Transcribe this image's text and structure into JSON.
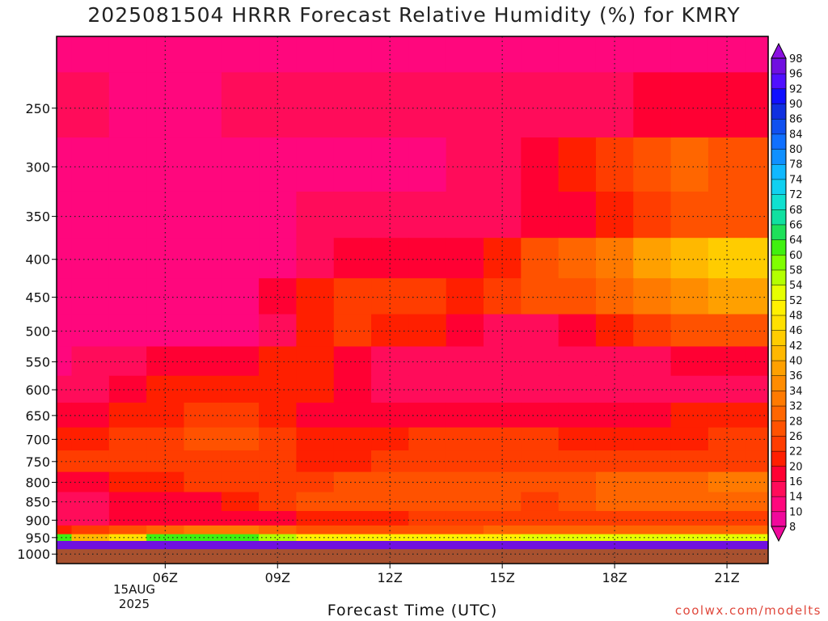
{
  "page": {
    "title": "2025081504 HRRR Forecast Relative Humidity (%) for KMRY",
    "credit": "coolwx.com/modelts"
  },
  "chart_data": {
    "type": "heatmap",
    "title": "2025081504 HRRR Forecast Relative Humidity (%) for KMRY",
    "xlabel": "Forecast Time (UTC)",
    "ylabel": "",
    "x_ticks": [
      "06Z",
      "09Z",
      "12Z",
      "15Z",
      "18Z",
      "21Z"
    ],
    "x_date_labels": [
      "15AUG",
      "2025"
    ],
    "y_ticks": [
      250,
      300,
      350,
      400,
      450,
      500,
      550,
      600,
      650,
      700,
      750,
      800,
      850,
      900,
      950,
      1000
    ],
    "y_scale": "log",
    "y_reversed": true,
    "grid": true,
    "colorbar": {
      "levels": [
        8,
        10,
        14,
        16,
        20,
        22,
        26,
        28,
        32,
        34,
        36,
        40,
        42,
        46,
        48,
        52,
        54,
        58,
        60,
        64,
        66,
        68,
        72,
        74,
        78,
        80,
        84,
        86,
        90,
        92,
        96,
        98
      ],
      "colors": [
        "#f0099b",
        "#ff077d",
        "#ff0c5a",
        "#ff0033",
        "#ff1f00",
        "#ff3d00",
        "#ff5200",
        "#ff6600",
        "#ff7a00",
        "#ff8c00",
        "#ffa000",
        "#ffb800",
        "#ffcc00",
        "#ffe000",
        "#fff000",
        "#e6ff00",
        "#b3ff00",
        "#80ff00",
        "#40f010",
        "#1ee05a",
        "#10e0a0",
        "#10e0d0",
        "#10d0f0",
        "#10b8ff",
        "#1090ff",
        "#1070ff",
        "#1050f0",
        "#1030e0",
        "#1010ff",
        "#5010ff",
        "#7010e0"
      ]
    },
    "profile": {
      "time_hours": [
        3,
        4,
        5,
        6,
        7,
        8,
        9,
        10,
        11,
        12,
        13,
        14,
        15,
        16,
        17,
        18,
        19,
        20,
        21,
        22
      ],
      "surface_pressure": 985,
      "pressure_levels": [
        200,
        250,
        300,
        350,
        400,
        450,
        500,
        550,
        600,
        650,
        700,
        750,
        800,
        850,
        900,
        930,
        950,
        970,
        985
      ],
      "rh": [
        [
          10,
          10,
          10,
          10,
          10,
          10,
          10,
          10,
          10,
          10,
          10,
          10,
          10,
          10,
          10,
          10,
          10,
          10,
          10,
          10
        ],
        [
          14,
          14,
          12,
          12,
          12,
          14,
          14,
          14,
          14,
          14,
          14,
          14,
          14,
          14,
          14,
          14,
          16,
          16,
          16,
          16
        ],
        [
          12,
          12,
          10,
          10,
          10,
          10,
          12,
          12,
          12,
          12,
          12,
          14,
          14,
          16,
          20,
          22,
          26,
          28,
          26,
          26
        ],
        [
          10,
          10,
          10,
          10,
          10,
          10,
          10,
          14,
          14,
          14,
          14,
          14,
          14,
          16,
          16,
          20,
          22,
          26,
          26,
          26
        ],
        [
          12,
          12,
          10,
          10,
          10,
          10,
          10,
          14,
          16,
          16,
          16,
          16,
          20,
          26,
          28,
          32,
          36,
          40,
          42,
          42
        ],
        [
          10,
          10,
          10,
          10,
          10,
          10,
          16,
          20,
          22,
          22,
          22,
          20,
          22,
          26,
          26,
          28,
          32,
          34,
          36,
          36
        ],
        [
          10,
          10,
          10,
          10,
          10,
          12,
          14,
          20,
          22,
          20,
          20,
          16,
          14,
          14,
          16,
          20,
          22,
          26,
          26,
          26
        ],
        [
          12,
          14,
          14,
          16,
          16,
          16,
          20,
          20,
          16,
          14,
          14,
          14,
          14,
          14,
          14,
          14,
          14,
          16,
          16,
          16
        ],
        [
          14,
          14,
          16,
          20,
          20,
          20,
          20,
          20,
          16,
          14,
          14,
          14,
          14,
          14,
          14,
          14,
          14,
          14,
          14,
          14
        ],
        [
          16,
          16,
          20,
          20,
          22,
          22,
          20,
          16,
          16,
          16,
          16,
          16,
          16,
          16,
          16,
          16,
          16,
          20,
          20,
          20
        ],
        [
          20,
          20,
          22,
          22,
          26,
          26,
          22,
          20,
          20,
          20,
          22,
          22,
          22,
          22,
          20,
          20,
          20,
          20,
          22,
          22
        ],
        [
          22,
          22,
          22,
          22,
          22,
          22,
          22,
          20,
          20,
          22,
          22,
          22,
          22,
          22,
          22,
          22,
          22,
          22,
          22,
          22
        ],
        [
          16,
          16,
          20,
          20,
          22,
          22,
          22,
          22,
          26,
          26,
          26,
          26,
          26,
          26,
          26,
          28,
          28,
          28,
          32,
          32
        ],
        [
          14,
          14,
          16,
          16,
          16,
          20,
          22,
          26,
          26,
          26,
          26,
          26,
          26,
          22,
          26,
          28,
          28,
          28,
          28,
          28
        ],
        [
          14,
          14,
          16,
          16,
          16,
          16,
          16,
          20,
          20,
          20,
          22,
          22,
          22,
          22,
          22,
          22,
          22,
          22,
          22,
          22
        ],
        [
          20,
          22,
          26,
          28,
          32,
          32,
          28,
          26,
          26,
          26,
          26,
          26,
          28,
          28,
          28,
          28,
          28,
          28,
          28,
          28
        ],
        [
          60,
          40,
          46,
          60,
          60,
          60,
          54,
          48,
          48,
          48,
          48,
          48,
          48,
          52,
          52,
          52,
          52,
          52,
          52,
          52
        ],
        [
          96,
          96,
          96,
          96,
          96,
          96,
          96,
          96,
          96,
          96,
          96,
          96,
          96,
          96,
          96,
          96,
          96,
          96,
          96,
          96
        ],
        [
          98,
          98,
          98,
          98,
          98,
          98,
          98,
          98,
          98,
          98,
          98,
          98,
          98,
          98,
          98,
          98,
          98,
          98,
          98,
          98
        ]
      ]
    }
  }
}
